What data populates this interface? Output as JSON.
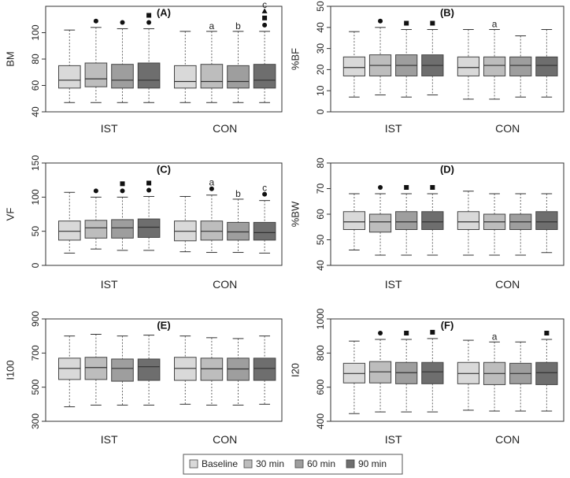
{
  "legend": {
    "items": [
      {
        "label": "Baseline",
        "color": "#d9d9d9"
      },
      {
        "label": "30 min",
        "color": "#bdbdbd"
      },
      {
        "label": "60 min",
        "color": "#9e9e9e"
      },
      {
        "label": "90 min",
        "color": "#6e6e6e"
      }
    ]
  },
  "colors": {
    "box_border": "#444444",
    "axis": "#333333",
    "whisker": "#666666",
    "marker": "#111111"
  },
  "chart_data": [
    {
      "type": "box",
      "panel": "(A)",
      "ylabel": "BM",
      "ylim": [
        40,
        120
      ],
      "yticks": [
        40,
        60,
        80,
        100
      ],
      "groups": [
        "IST",
        "CON"
      ],
      "boxes": [
        {
          "group": "IST",
          "series": "Baseline",
          "min": 47,
          "q1": 58,
          "median": 64,
          "q3": 75,
          "max": 102,
          "marks": []
        },
        {
          "group": "IST",
          "series": "30 min",
          "min": 47,
          "q1": 59,
          "median": 65,
          "q3": 77,
          "max": 104,
          "marks": [
            "circle"
          ]
        },
        {
          "group": "IST",
          "series": "60 min",
          "min": 47,
          "q1": 58,
          "median": 64,
          "q3": 76,
          "max": 103,
          "marks": [
            "circle"
          ]
        },
        {
          "group": "IST",
          "series": "90 min",
          "min": 47,
          "q1": 58,
          "median": 64,
          "q3": 77,
          "max": 103,
          "marks": [
            "circle",
            "square"
          ]
        },
        {
          "group": "CON",
          "series": "Baseline",
          "min": 47,
          "q1": 58,
          "median": 63,
          "q3": 75,
          "max": 101,
          "marks": []
        },
        {
          "group": "CON",
          "series": "30 min",
          "min": 47,
          "q1": 58,
          "median": 63,
          "q3": 76,
          "max": 101,
          "marks": [
            "a"
          ]
        },
        {
          "group": "CON",
          "series": "60 min",
          "min": 47,
          "q1": 58,
          "median": 63,
          "q3": 75,
          "max": 101,
          "marks": [
            "b"
          ]
        },
        {
          "group": "CON",
          "series": "90 min",
          "min": 47,
          "q1": 58,
          "median": 64,
          "q3": 76,
          "max": 101,
          "marks": [
            "circle",
            "square",
            "triangle",
            "c"
          ]
        }
      ]
    },
    {
      "type": "box",
      "panel": "(B)",
      "ylabel": "%BF",
      "ylim": [
        0,
        50
      ],
      "yticks": [
        0,
        10,
        20,
        30,
        40,
        50
      ],
      "groups": [
        "IST",
        "CON"
      ],
      "boxes": [
        {
          "group": "IST",
          "series": "Baseline",
          "min": 7,
          "q1": 17,
          "median": 21,
          "q3": 26,
          "max": 38,
          "marks": []
        },
        {
          "group": "IST",
          "series": "30 min",
          "min": 8,
          "q1": 17,
          "median": 22,
          "q3": 27,
          "max": 40,
          "marks": [
            "circle"
          ]
        },
        {
          "group": "IST",
          "series": "60 min",
          "min": 7,
          "q1": 17,
          "median": 22,
          "q3": 27,
          "max": 39,
          "marks": [
            "square"
          ]
        },
        {
          "group": "IST",
          "series": "90 min",
          "min": 8,
          "q1": 17,
          "median": 22,
          "q3": 27,
          "max": 39,
          "marks": [
            "square"
          ]
        },
        {
          "group": "CON",
          "series": "Baseline",
          "min": 6,
          "q1": 17,
          "median": 21,
          "q3": 26,
          "max": 39,
          "marks": []
        },
        {
          "group": "CON",
          "series": "30 min",
          "min": 6,
          "q1": 17,
          "median": 22,
          "q3": 26,
          "max": 39,
          "marks": [
            "a"
          ]
        },
        {
          "group": "CON",
          "series": "60 min",
          "min": 7,
          "q1": 17,
          "median": 22,
          "q3": 26,
          "max": 36,
          "marks": []
        },
        {
          "group": "CON",
          "series": "90 min",
          "min": 7,
          "q1": 17,
          "median": 22,
          "q3": 26,
          "max": 39,
          "marks": []
        }
      ]
    },
    {
      "type": "box",
      "panel": "(C)",
      "ylabel": "VF",
      "ylim": [
        0,
        150
      ],
      "yticks": [
        0,
        50,
        100,
        150
      ],
      "groups": [
        "IST",
        "CON"
      ],
      "boxes": [
        {
          "group": "IST",
          "series": "Baseline",
          "min": 18,
          "q1": 37,
          "median": 50,
          "q3": 65,
          "max": 107,
          "marks": []
        },
        {
          "group": "IST",
          "series": "30 min",
          "min": 24,
          "q1": 40,
          "median": 55,
          "q3": 66,
          "max": 100,
          "marks": [
            "circle"
          ]
        },
        {
          "group": "IST",
          "series": "60 min",
          "min": 22,
          "q1": 40,
          "median": 55,
          "q3": 67,
          "max": 100,
          "marks": [
            "circle",
            "square"
          ]
        },
        {
          "group": "IST",
          "series": "90 min",
          "min": 22,
          "q1": 41,
          "median": 56,
          "q3": 68,
          "max": 101,
          "marks": [
            "circle",
            "square"
          ]
        },
        {
          "group": "CON",
          "series": "Baseline",
          "min": 20,
          "q1": 36,
          "median": 50,
          "q3": 65,
          "max": 101,
          "marks": []
        },
        {
          "group": "CON",
          "series": "30 min",
          "min": 19,
          "q1": 37,
          "median": 50,
          "q3": 65,
          "max": 103,
          "marks": [
            "circle",
            "a"
          ]
        },
        {
          "group": "CON",
          "series": "60 min",
          "min": 19,
          "q1": 37,
          "median": 49,
          "q3": 63,
          "max": 97,
          "marks": [
            "b"
          ]
        },
        {
          "group": "CON",
          "series": "90 min",
          "min": 18,
          "q1": 37,
          "median": 48,
          "q3": 63,
          "max": 95,
          "marks": [
            "circle",
            "c"
          ]
        }
      ]
    },
    {
      "type": "box",
      "panel": "(D)",
      "ylabel": "%BW",
      "ylim": [
        40,
        80
      ],
      "yticks": [
        40,
        50,
        60,
        70,
        80
      ],
      "groups": [
        "IST",
        "CON"
      ],
      "boxes": [
        {
          "group": "IST",
          "series": "Baseline",
          "min": 46,
          "q1": 54,
          "median": 57,
          "q3": 61,
          "max": 68,
          "marks": []
        },
        {
          "group": "IST",
          "series": "30 min",
          "min": 44,
          "q1": 53,
          "median": 57,
          "q3": 60,
          "max": 68,
          "marks": [
            "circle"
          ]
        },
        {
          "group": "IST",
          "series": "60 min",
          "min": 44,
          "q1": 54,
          "median": 57,
          "q3": 61,
          "max": 68,
          "marks": [
            "square"
          ]
        },
        {
          "group": "IST",
          "series": "90 min",
          "min": 44,
          "q1": 54,
          "median": 57,
          "q3": 61,
          "max": 68,
          "marks": [
            "square"
          ]
        },
        {
          "group": "CON",
          "series": "Baseline",
          "min": 44,
          "q1": 54,
          "median": 57,
          "q3": 61,
          "max": 69,
          "marks": []
        },
        {
          "group": "CON",
          "series": "30 min",
          "min": 44,
          "q1": 54,
          "median": 57,
          "q3": 60,
          "max": 68,
          "marks": []
        },
        {
          "group": "CON",
          "series": "60 min",
          "min": 44,
          "q1": 54,
          "median": 57,
          "q3": 60,
          "max": 68,
          "marks": []
        },
        {
          "group": "CON",
          "series": "90 min",
          "min": 45,
          "q1": 54,
          "median": 57,
          "q3": 61,
          "max": 68,
          "marks": []
        }
      ]
    },
    {
      "type": "box",
      "panel": "(E)",
      "ylabel": "I100",
      "ylim": [
        300,
        900
      ],
      "yticks": [
        300,
        500,
        700,
        900
      ],
      "groups": [
        "IST",
        "CON"
      ],
      "boxes": [
        {
          "group": "IST",
          "series": "Baseline",
          "min": 385,
          "q1": 545,
          "median": 610,
          "q3": 670,
          "max": 800,
          "marks": []
        },
        {
          "group": "IST",
          "series": "30 min",
          "min": 395,
          "q1": 545,
          "median": 615,
          "q3": 675,
          "max": 810,
          "marks": []
        },
        {
          "group": "IST",
          "series": "60 min",
          "min": 395,
          "q1": 535,
          "median": 610,
          "q3": 665,
          "max": 800,
          "marks": []
        },
        {
          "group": "IST",
          "series": "90 min",
          "min": 395,
          "q1": 540,
          "median": 620,
          "q3": 665,
          "max": 805,
          "marks": []
        },
        {
          "group": "CON",
          "series": "Baseline",
          "min": 400,
          "q1": 540,
          "median": 610,
          "q3": 675,
          "max": 800,
          "marks": []
        },
        {
          "group": "CON",
          "series": "30 min",
          "min": 395,
          "q1": 540,
          "median": 608,
          "q3": 670,
          "max": 790,
          "marks": []
        },
        {
          "group": "CON",
          "series": "60 min",
          "min": 395,
          "q1": 540,
          "median": 607,
          "q3": 670,
          "max": 785,
          "marks": []
        },
        {
          "group": "CON",
          "series": "90 min",
          "min": 400,
          "q1": 540,
          "median": 610,
          "q3": 670,
          "max": 800,
          "marks": []
        }
      ]
    },
    {
      "type": "box",
      "panel": "(F)",
      "ylabel": "I20",
      "ylim": [
        400,
        1000
      ],
      "yticks": [
        400,
        600,
        800,
        1000
      ],
      "groups": [
        "IST",
        "CON"
      ],
      "boxes": [
        {
          "group": "IST",
          "series": "Baseline",
          "min": 445,
          "q1": 625,
          "median": 680,
          "q3": 740,
          "max": 870,
          "marks": []
        },
        {
          "group": "IST",
          "series": "30 min",
          "min": 455,
          "q1": 625,
          "median": 690,
          "q3": 750,
          "max": 880,
          "marks": [
            "circle"
          ]
        },
        {
          "group": "IST",
          "series": "60 min",
          "min": 455,
          "q1": 620,
          "median": 685,
          "q3": 745,
          "max": 880,
          "marks": [
            "square"
          ]
        },
        {
          "group": "IST",
          "series": "90 min",
          "min": 455,
          "q1": 620,
          "median": 690,
          "q3": 745,
          "max": 885,
          "marks": [
            "square"
          ]
        },
        {
          "group": "CON",
          "series": "Baseline",
          "min": 465,
          "q1": 620,
          "median": 680,
          "q3": 745,
          "max": 875,
          "marks": []
        },
        {
          "group": "CON",
          "series": "30 min",
          "min": 460,
          "q1": 615,
          "median": 680,
          "q3": 745,
          "max": 865,
          "marks": [
            "a"
          ]
        },
        {
          "group": "CON",
          "series": "60 min",
          "min": 460,
          "q1": 620,
          "median": 680,
          "q3": 740,
          "max": 865,
          "marks": []
        },
        {
          "group": "CON",
          "series": "90 min",
          "min": 460,
          "q1": 615,
          "median": 685,
          "q3": 745,
          "max": 880,
          "marks": [
            "square"
          ]
        }
      ]
    }
  ]
}
